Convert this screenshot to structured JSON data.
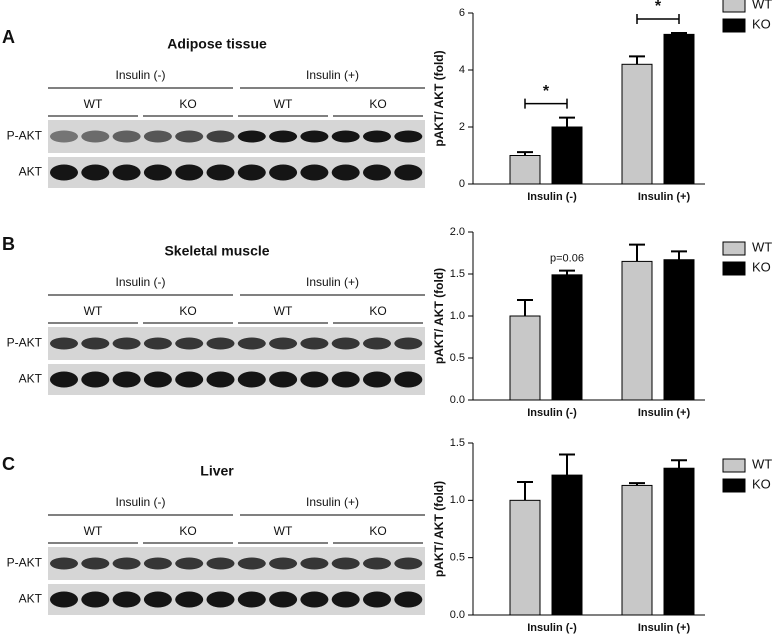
{
  "chart_data": [
    {
      "type": "bar",
      "panel": "A",
      "title": "Adipose tissue",
      "blot": {
        "groups": [
          "Insulin (-)",
          "Insulin (+)"
        ],
        "genotypes": [
          "WT",
          "KO",
          "WT",
          "KO"
        ],
        "rows": [
          "P-AKT",
          "AKT"
        ]
      },
      "ylabel": "pAKT/ AKT (fold)",
      "categories": [
        "Insulin (-)",
        "Insulin (+)"
      ],
      "series": [
        {
          "name": "WT",
          "color": "#c8c8c8",
          "values": [
            1.0,
            4.2
          ],
          "errors": [
            0.12,
            0.28
          ]
        },
        {
          "name": "KO",
          "color": "#000000",
          "values": [
            2.0,
            5.25
          ],
          "errors": [
            0.33,
            0.05
          ]
        }
      ],
      "ylim": [
        0,
        6
      ],
      "yticks": [
        0,
        2,
        4,
        6
      ],
      "annotations": [
        "*",
        "*"
      ]
    },
    {
      "type": "bar",
      "panel": "B",
      "title": "Skeletal muscle",
      "blot": {
        "groups": [
          "Insulin (-)",
          "Insulin (+)"
        ],
        "genotypes": [
          "WT",
          "KO",
          "WT",
          "KO"
        ],
        "rows": [
          "P-AKT",
          "AKT"
        ]
      },
      "ylabel": "pAKT/ AKT (fold)",
      "categories": [
        "Insulin (-)",
        "Insulin (+)"
      ],
      "series": [
        {
          "name": "WT",
          "color": "#c8c8c8",
          "values": [
            1.0,
            1.65
          ],
          "errors": [
            0.19,
            0.2
          ]
        },
        {
          "name": "KO",
          "color": "#000000",
          "values": [
            1.49,
            1.67
          ],
          "errors": [
            0.05,
            0.1
          ]
        }
      ],
      "ylim": [
        0,
        2.0
      ],
      "yticks": [
        {
          "value": 0,
          "label": "0.0"
        },
        {
          "value": 0.5,
          "label": "0.5"
        },
        {
          "value": 1,
          "label": "1.0"
        },
        {
          "value": 1.5,
          "label": "1.5"
        },
        {
          "value": 2,
          "label": "2.0"
        }
      ],
      "annotations": [
        "p=0.06"
      ]
    },
    {
      "type": "bar",
      "panel": "C",
      "title": "Liver",
      "blot": {
        "groups": [
          "Insulin (-)",
          "Insulin (+)"
        ],
        "genotypes": [
          "WT",
          "KO",
          "WT",
          "KO"
        ],
        "rows": [
          "P-AKT",
          "AKT"
        ]
      },
      "ylabel": "pAKT/ AKT (fold)",
      "categories": [
        "Insulin (-)",
        "Insulin (+)"
      ],
      "series": [
        {
          "name": "WT",
          "color": "#c8c8c8",
          "values": [
            1.0,
            1.13
          ],
          "errors": [
            0.16,
            0.02
          ]
        },
        {
          "name": "KO",
          "color": "#000000",
          "values": [
            1.22,
            1.28
          ],
          "errors": [
            0.18,
            0.07
          ]
        }
      ],
      "ylim": [
        0,
        1.5
      ],
      "yticks": [
        {
          "value": 0,
          "label": "0.0"
        },
        {
          "value": 0.5,
          "label": "0.5"
        },
        {
          "value": 1,
          "label": "1.0"
        },
        {
          "value": 1.5,
          "label": "1.5"
        }
      ],
      "annotations": []
    }
  ]
}
